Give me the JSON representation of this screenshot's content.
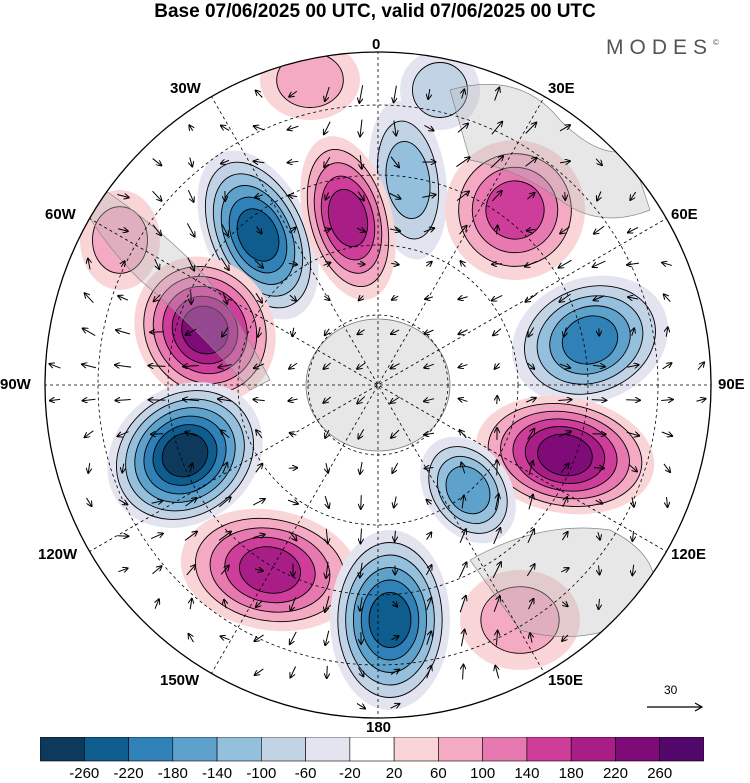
{
  "title": "Base 07/06/2025 00 UTC, valid 07/06/2025 00 UTC",
  "brand": {
    "name": "MODES",
    "mark": "©"
  },
  "map": {
    "projection": "south polar stereographic",
    "longitude_labels": {
      "top": "0",
      "top_right": "30E",
      "right_upper": "60E",
      "right": "90E",
      "right_lower": "120E",
      "bottom_right": "150E",
      "bottom": "180",
      "bottom_left": "150W",
      "left_lower": "120W",
      "left": "90W",
      "left_upper": "60W",
      "top_left": "30W"
    },
    "vector_reference": "30"
  },
  "colorbar": {
    "ticks": [
      "-260",
      "-220",
      "-180",
      "-140",
      "-100",
      "-60",
      "-20",
      "20",
      "60",
      "100",
      "140",
      "180",
      "220",
      "260"
    ],
    "colors": [
      "#0d3a5c",
      "#0f5d8f",
      "#2f81b8",
      "#5ea2cc",
      "#94bfdd",
      "#c2d3e6",
      "#e4e4f0",
      "#ffffff",
      "#f9d5d8",
      "#f3aac2",
      "#e779b0",
      "#cf3d9a",
      "#a81d86",
      "#7f0b78",
      "#52086a"
    ]
  }
}
